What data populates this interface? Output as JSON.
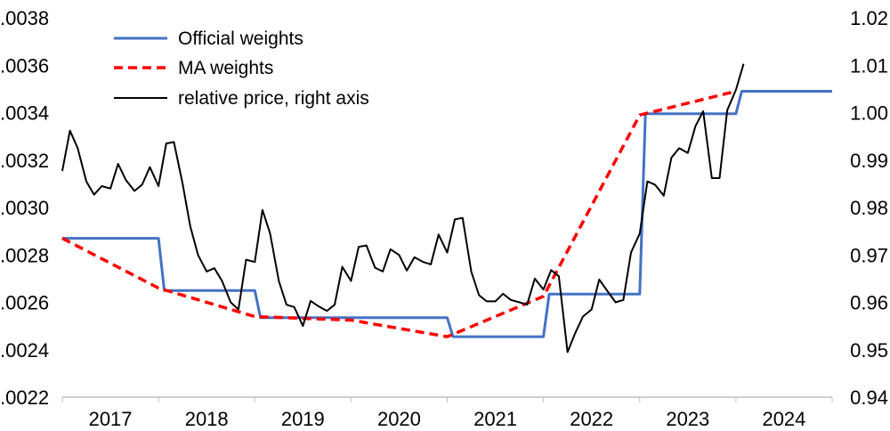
{
  "chart_data": {
    "type": "line",
    "x_categories": [
      "2017",
      "2018",
      "2019",
      "2020",
      "2021",
      "2022",
      "2023",
      "2024"
    ],
    "ylim_left": [
      0.0022,
      0.0038
    ],
    "ylim_right": [
      0.94,
      1.02
    ],
    "yticks_left": [
      ".0022",
      ".0024",
      ".0026",
      ".0028",
      ".0030",
      ".0032",
      ".0034",
      ".0036",
      ".0038"
    ],
    "yticks_right": [
      "0.94",
      "0.95",
      "0.96",
      "0.97",
      "0.98",
      "0.99",
      "1.00",
      "1.01",
      "1.02"
    ],
    "grid": false,
    "legend_position": "top-left",
    "series": [
      {
        "name": "Official weights",
        "axis": "left",
        "color": "#4472c4",
        "style": "solid",
        "points": [
          [
            2016.92,
            0.00287
          ],
          [
            2017.92,
            0.00287
          ],
          [
            2017.98,
            0.00265
          ],
          [
            2018.92,
            0.00265
          ],
          [
            2018.98,
            0.002535
          ],
          [
            2020.92,
            0.002535
          ],
          [
            2020.98,
            0.002455
          ],
          [
            2021.92,
            0.002455
          ],
          [
            2021.98,
            0.002635
          ],
          [
            2022.92,
            0.002635
          ],
          [
            2022.98,
            0.003395
          ],
          [
            2023.92,
            0.003395
          ],
          [
            2023.98,
            0.00349
          ],
          [
            2024.92,
            0.00349
          ]
        ]
      },
      {
        "name": "MA weights",
        "axis": "left",
        "color": "#ff0000",
        "style": "dashed",
        "points": [
          [
            2016.92,
            0.00287
          ],
          [
            2017.92,
            0.00266
          ],
          [
            2018.92,
            0.00254
          ],
          [
            2019.92,
            0.002525
          ],
          [
            2020.92,
            0.002455
          ],
          [
            2021.92,
            0.002625
          ],
          [
            2022.92,
            0.00339
          ],
          [
            2023.92,
            0.00349
          ]
        ]
      },
      {
        "name": "relative price, right axis",
        "axis": "right",
        "color": "#000000",
        "style": "solid",
        "points": [
          [
            2016.92,
            0.9877
          ],
          [
            2017.0,
            0.9962
          ],
          [
            2017.08,
            0.9925
          ],
          [
            2017.17,
            0.9855
          ],
          [
            2017.25,
            0.9827
          ],
          [
            2017.33,
            0.9845
          ],
          [
            2017.42,
            0.984
          ],
          [
            2017.5,
            0.9892
          ],
          [
            2017.58,
            0.9858
          ],
          [
            2017.67,
            0.9835
          ],
          [
            2017.75,
            0.9848
          ],
          [
            2017.83,
            0.9885
          ],
          [
            2017.92,
            0.9845
          ],
          [
            2018.0,
            0.9935
          ],
          [
            2018.08,
            0.9938
          ],
          [
            2018.17,
            0.985
          ],
          [
            2018.25,
            0.976
          ],
          [
            2018.33,
            0.97
          ],
          [
            2018.42,
            0.9665
          ],
          [
            2018.5,
            0.9672
          ],
          [
            2018.58,
            0.9645
          ],
          [
            2018.67,
            0.96
          ],
          [
            2018.75,
            0.9585
          ],
          [
            2018.83,
            0.969
          ],
          [
            2018.92,
            0.9685
          ],
          [
            2019.0,
            0.9795
          ],
          [
            2019.08,
            0.9745
          ],
          [
            2019.17,
            0.9645
          ],
          [
            2019.25,
            0.9595
          ],
          [
            2019.33,
            0.959
          ],
          [
            2019.42,
            0.955
          ],
          [
            2019.5,
            0.9603
          ],
          [
            2019.58,
            0.9592
          ],
          [
            2019.67,
            0.9582
          ],
          [
            2019.75,
            0.9595
          ],
          [
            2019.83,
            0.9675
          ],
          [
            2019.92,
            0.9645
          ],
          [
            2020.0,
            0.9717
          ],
          [
            2020.08,
            0.972
          ],
          [
            2020.17,
            0.9673
          ],
          [
            2020.25,
            0.9665
          ],
          [
            2020.33,
            0.9712
          ],
          [
            2020.42,
            0.97
          ],
          [
            2020.5,
            0.9667
          ],
          [
            2020.58,
            0.9695
          ],
          [
            2020.67,
            0.9685
          ],
          [
            2020.75,
            0.968
          ],
          [
            2020.83,
            0.9743
          ],
          [
            2020.92,
            0.9705
          ],
          [
            2021.0,
            0.9775
          ],
          [
            2021.08,
            0.9778
          ],
          [
            2021.17,
            0.9665
          ],
          [
            2021.25,
            0.9615
          ],
          [
            2021.33,
            0.9602
          ],
          [
            2021.42,
            0.9602
          ],
          [
            2021.5,
            0.9618
          ],
          [
            2021.58,
            0.9605
          ],
          [
            2021.67,
            0.96
          ],
          [
            2021.75,
            0.9595
          ],
          [
            2021.83,
            0.965
          ],
          [
            2021.92,
            0.9627
          ],
          [
            2022.0,
            0.9668
          ],
          [
            2022.08,
            0.9655
          ],
          [
            2022.17,
            0.9495
          ],
          [
            2022.25,
            0.9535
          ],
          [
            2022.33,
            0.957
          ],
          [
            2022.42,
            0.9585
          ],
          [
            2022.5,
            0.9648
          ],
          [
            2022.58,
            0.9625
          ],
          [
            2022.67,
            0.96
          ],
          [
            2022.75,
            0.9605
          ],
          [
            2022.83,
            0.9705
          ],
          [
            2022.92,
            0.9745
          ],
          [
            2023.0,
            0.9855
          ],
          [
            2023.08,
            0.9848
          ],
          [
            2023.17,
            0.9825
          ],
          [
            2023.25,
            0.9905
          ],
          [
            2023.33,
            0.9925
          ],
          [
            2023.42,
            0.9915
          ],
          [
            2023.5,
            0.9972
          ],
          [
            2023.58,
            1.0003
          ],
          [
            2023.67,
            0.9862
          ],
          [
            2023.75,
            0.9862
          ],
          [
            2023.83,
            1.0005
          ],
          [
            2023.92,
            1.0048
          ],
          [
            2024.0,
            1.0103
          ]
        ]
      }
    ]
  }
}
